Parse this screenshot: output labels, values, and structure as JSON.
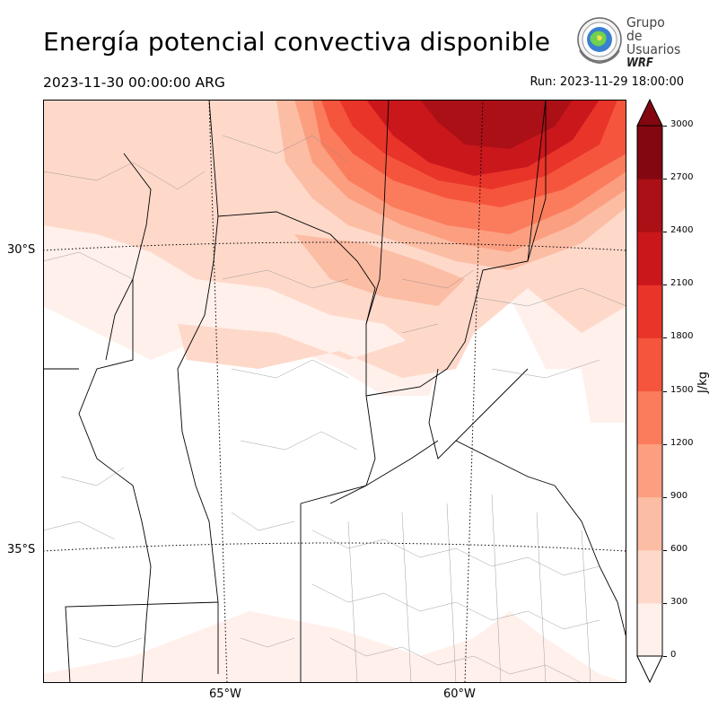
{
  "title": "Energía potencial convectiva disponible",
  "valid_time": "2023-11-30 00:00:00 ARG",
  "run_time": "Run: 2023-11-29 18:00:00",
  "logo": {
    "line1": "Grupo de",
    "line2": "Usuarios",
    "line3": "WRF"
  },
  "map": {
    "lat_labels": [
      "30°S",
      "35°S"
    ],
    "lon_labels": [
      "65°W",
      "60°W"
    ]
  },
  "colorbar": {
    "unit": "J/kg",
    "ticks": [
      "0",
      "300",
      "600",
      "900",
      "1200",
      "1500",
      "1800",
      "2100",
      "2400",
      "2700",
      "3000"
    ],
    "colors": [
      "#fff0eb",
      "#fed9ca",
      "#fcbda5",
      "#fc9f81",
      "#fb7c5c",
      "#f5553c",
      "#e83429",
      "#c9171c",
      "#aa1016",
      "#820710"
    ]
  }
}
